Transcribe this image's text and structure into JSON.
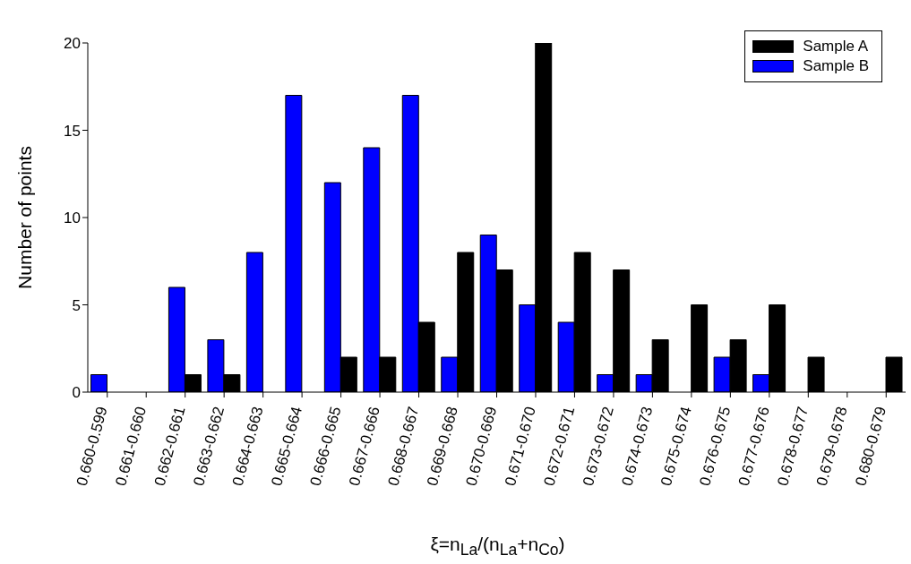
{
  "chart_data": {
    "type": "bar",
    "xlabel": "ξ=n$_{La}$/(n$_{La}$+n$_{Co}$)",
    "ylabel": "Number of points",
    "categories": [
      "0.660-0.599",
      "0.661-0.660",
      "0.662-0.661",
      "0.663-0.662",
      "0.664-0.663",
      "0.665-0.664",
      "0.666-0.665",
      "0.667-0.666",
      "0.668-0.667",
      "0.669-0.668",
      "0.670-0.669",
      "0.671-0.670",
      "0.672-0.671",
      "0.673-0.672",
      "0.674-0.673",
      "0.675-0.674",
      "0.676-0.675",
      "0.677-0.676",
      "0.678-0.677",
      "0.679-0.678",
      "0.680-0.679"
    ],
    "series": [
      {
        "name": "Sample A",
        "color": "#000000",
        "values": [
          0,
          0,
          1,
          1,
          0,
          0,
          2,
          2,
          4,
          8,
          7,
          20,
          8,
          7,
          3,
          5,
          3,
          5,
          2,
          0,
          2
        ]
      },
      {
        "name": "Sample B",
        "color": "#0000ff",
        "values": [
          1,
          0,
          6,
          3,
          8,
          17,
          12,
          14,
          17,
          2,
          9,
          5,
          4,
          1,
          1,
          0,
          2,
          1,
          0,
          0,
          0
        ]
      }
    ],
    "ylim": [
      0,
      20
    ],
    "yticks": [
      0,
      5,
      10,
      15,
      20
    ],
    "grid": false,
    "legend": "top right"
  }
}
